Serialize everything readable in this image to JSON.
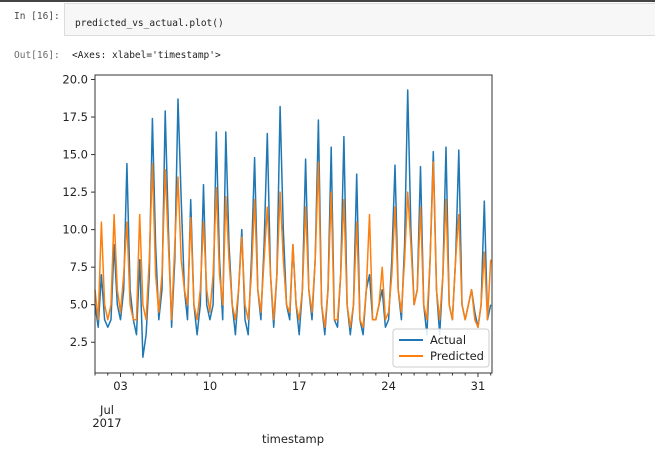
{
  "cell": {
    "in_prompt": "In [16]:",
    "code": "predicted_vs_actual.plot()",
    "out_prompt": "Out[16]:",
    "output_text": "<Axes: xlabel='timestamp'>"
  },
  "colors": {
    "actual": "#1f77b4",
    "predicted": "#ff7f0e"
  },
  "chart_data": {
    "type": "line",
    "title": "",
    "xlabel": "timestamp",
    "ylabel": "",
    "x_unit": "days since 2017-07-01 (6-hour samples, approximate)",
    "x_step_days": 0.25,
    "xlim_days": [
      0,
      31.1
    ],
    "ylim": [
      0.45,
      20.3
    ],
    "yticks": [
      "2.5",
      "5.0",
      "7.5",
      "10.0",
      "12.5",
      "15.0",
      "17.5",
      "20.0"
    ],
    "xticks": [
      {
        "day": 2,
        "label": "03"
      },
      {
        "day": 9,
        "label": "10"
      },
      {
        "day": 16,
        "label": "17"
      },
      {
        "day": 23,
        "label": "24"
      },
      {
        "day": 30,
        "label": "31"
      }
    ],
    "xtick_month": "Jul",
    "xtick_year": "2017",
    "legend": {
      "position": "lower-right",
      "entries": [
        "Actual",
        "Predicted"
      ]
    },
    "grid": false,
    "series": [
      {
        "name": "Actual",
        "values": [
          5,
          3.5,
          7,
          4,
          3.5,
          4,
          9,
          5,
          4,
          6,
          14.4,
          6,
          4,
          3,
          8,
          1.5,
          3,
          7,
          17.4,
          9,
          4,
          6,
          17.9,
          10,
          3.5,
          8,
          18.7,
          12,
          6,
          4,
          12,
          5,
          3,
          5,
          13,
          5,
          4,
          5,
          16.5,
          8,
          4,
          16.5,
          9,
          5,
          3,
          6,
          10,
          4,
          3,
          8,
          14.8,
          6,
          4,
          9,
          16.4,
          7,
          3.5,
          7,
          18.2,
          10,
          5,
          4,
          9,
          5,
          3,
          6,
          14.7,
          6,
          4,
          8,
          17.3,
          5,
          3,
          6,
          15.5,
          4,
          3.5,
          7,
          16.2,
          5,
          3,
          5,
          13.7,
          4,
          3,
          6,
          7,
          4,
          4,
          5,
          6,
          3.5,
          4,
          8,
          14.3,
          6,
          4,
          9,
          19.3,
          10,
          5,
          6,
          14.2,
          5,
          3,
          8,
          15.2,
          6,
          3,
          7,
          15.5,
          5,
          4,
          8,
          15.3,
          5,
          4,
          5,
          6,
          4.5,
          3.5,
          5,
          11.9,
          4,
          5
        ]
      },
      {
        "name": "Predicted",
        "values": [
          6,
          4,
          10.5,
          5,
          4,
          5,
          11,
          6,
          4.5,
          7,
          10.5,
          5,
          4,
          4,
          11,
          5,
          4,
          8,
          14.4,
          7,
          4.5,
          7,
          14,
          9,
          4,
          9,
          13.5,
          8,
          6,
          5,
          10.8,
          5,
          4,
          6,
          10.5,
          6,
          4.5,
          7,
          12.8,
          7,
          5,
          12.2,
          8,
          5,
          4,
          6,
          9.5,
          5,
          4,
          7,
          12,
          6,
          4.5,
          8,
          11.5,
          7,
          4,
          7,
          12.5,
          8,
          5,
          4.5,
          9,
          5,
          4,
          6,
          11.5,
          6,
          4.5,
          8,
          14.5,
          5,
          3.5,
          6,
          12.5,
          4,
          4,
          7,
          12,
          5,
          3.5,
          5,
          10.5,
          4,
          3.5,
          6,
          11,
          4,
          4,
          5,
          7.5,
          4,
          4.5,
          7,
          11.5,
          6,
          4.5,
          8,
          12.5,
          9,
          5,
          6,
          11.5,
          5,
          4,
          8,
          14.5,
          6,
          4,
          7,
          12,
          5,
          4,
          8,
          11,
          5,
          4,
          5,
          6,
          4,
          3.5,
          5,
          8.5,
          4,
          8
        ]
      }
    ]
  }
}
